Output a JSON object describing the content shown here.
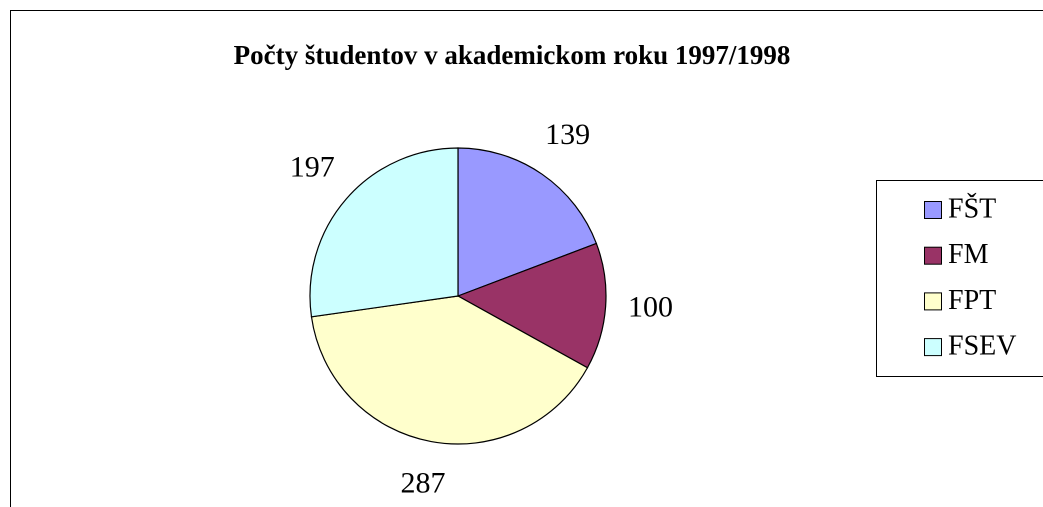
{
  "chart_data": {
    "type": "pie",
    "title": "Počty študentov v akademickom roku 1997/1998",
    "categories": [
      "FŠT",
      "FM",
      "FPT",
      "FSEV"
    ],
    "values": [
      139,
      100,
      287,
      197
    ],
    "colors": [
      "#9999ff",
      "#993366",
      "#ffffcc",
      "#ccffff"
    ],
    "legend": "right"
  }
}
